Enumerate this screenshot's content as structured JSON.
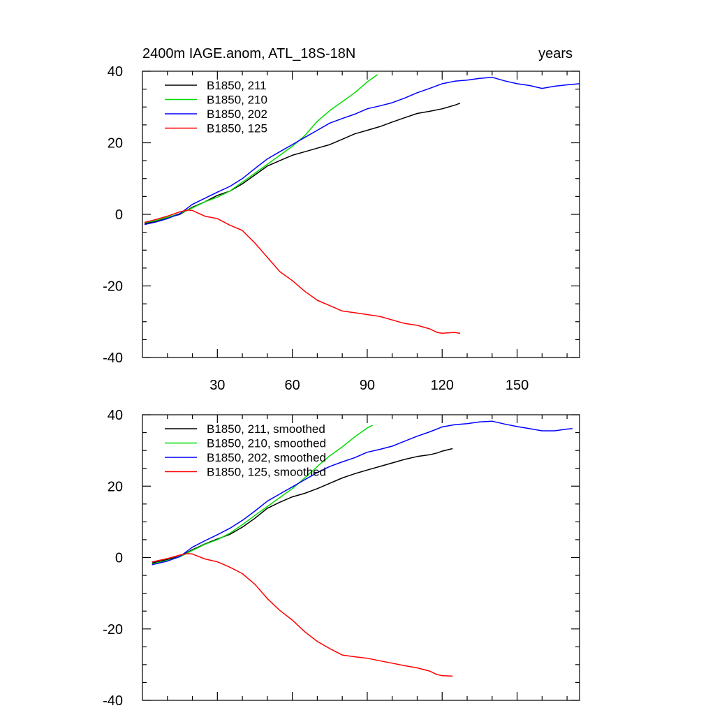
{
  "chart_data": [
    {
      "type": "line",
      "title_left": "2400m IAGE.anom, ATL_18S-18N",
      "title_right": "years",
      "xlim": [
        0,
        175
      ],
      "ylim": [
        -40,
        40
      ],
      "x_ticks": [
        30,
        60,
        90,
        120,
        150
      ],
      "x_tick_labels": [
        "30",
        "60",
        "90",
        "120",
        "150"
      ],
      "y_ticks": [
        -40,
        -20,
        0,
        20,
        40
      ],
      "y_tick_labels": [
        "-40",
        "-20",
        "0",
        "20",
        "40"
      ],
      "grid": false,
      "legend_position": "top-left",
      "series": [
        {
          "name": "B1850, 211",
          "color": "#000000",
          "x": [
            1,
            5,
            10,
            15,
            20,
            25,
            30,
            35,
            40,
            45,
            50,
            55,
            60,
            65,
            70,
            75,
            80,
            85,
            90,
            95,
            100,
            105,
            110,
            115,
            120,
            125,
            127
          ],
          "y": [
            -2.5,
            -2,
            -1,
            0,
            2,
            3.5,
            5.3,
            6.5,
            8.5,
            11,
            13.5,
            15,
            16.5,
            17.5,
            18.5,
            19.5,
            21,
            22.5,
            23.5,
            24.5,
            25.8,
            27,
            28.2,
            28.8,
            29.5,
            30.5,
            31
          ]
        },
        {
          "name": "B1850, 210",
          "color": "#00dd00",
          "x": [
            1,
            5,
            10,
            15,
            20,
            25,
            30,
            35,
            40,
            45,
            50,
            55,
            60,
            65,
            70,
            75,
            80,
            85,
            90,
            94
          ],
          "y": [
            -2.3,
            -1.8,
            -0.8,
            0.2,
            1.8,
            3.5,
            4.8,
            6.5,
            9,
            11.5,
            14,
            16.5,
            19,
            22,
            26,
            29,
            31.5,
            34,
            37,
            39
          ]
        },
        {
          "name": "B1850, 202",
          "color": "#0000ff",
          "x": [
            1,
            5,
            10,
            15,
            20,
            25,
            30,
            35,
            40,
            45,
            50,
            55,
            60,
            65,
            70,
            75,
            80,
            85,
            90,
            95,
            100,
            105,
            110,
            115,
            120,
            125,
            130,
            135,
            140,
            145,
            150,
            155,
            160,
            165,
            170,
            175
          ],
          "y": [
            -2.8,
            -2.2,
            -1.2,
            0.2,
            2.8,
            4.5,
            6.2,
            7.8,
            10,
            12.8,
            15.5,
            17.5,
            19.5,
            21.5,
            23.5,
            25.5,
            26.8,
            28,
            29.5,
            30.3,
            31.2,
            32.5,
            34,
            35.2,
            36.5,
            37.2,
            37.5,
            38,
            38.3,
            37.3,
            36.5,
            36,
            35.2,
            35.8,
            36.2,
            36.5
          ]
        },
        {
          "name": "B1850, 125",
          "color": "#ff0000",
          "x": [
            1,
            5,
            10,
            15,
            18,
            20,
            25,
            30,
            35,
            40,
            45,
            50,
            55,
            60,
            65,
            70,
            75,
            80,
            85,
            90,
            95,
            100,
            105,
            110,
            115,
            118,
            120,
            125,
            127
          ],
          "y": [
            -2.2,
            -1.5,
            -0.5,
            0.7,
            1.2,
            1.1,
            -0.5,
            -1.2,
            -3,
            -4.5,
            -8,
            -12,
            -16,
            -18.5,
            -21.5,
            -24,
            -25.5,
            -27,
            -27.5,
            -28,
            -28.5,
            -29.5,
            -30.5,
            -31,
            -32,
            -33,
            -33.2,
            -33,
            -33.2
          ]
        }
      ]
    },
    {
      "type": "line",
      "title_left": "",
      "title_right": "",
      "xlim": [
        0,
        175
      ],
      "ylim": [
        -40,
        40
      ],
      "x_ticks": [
        30,
        60,
        90,
        120,
        150
      ],
      "x_tick_labels": [],
      "y_ticks": [
        -40,
        -20,
        0,
        20,
        40
      ],
      "y_tick_labels": [
        "-40",
        "-20",
        "0",
        "20",
        "40"
      ],
      "grid": false,
      "legend_position": "top-left",
      "series": [
        {
          "name": "B1850, 211, smoothed",
          "color": "#000000",
          "x": [
            4,
            10,
            15,
            20,
            25,
            30,
            35,
            40,
            45,
            50,
            55,
            60,
            65,
            70,
            75,
            80,
            85,
            90,
            95,
            100,
            105,
            110,
            115,
            118,
            120,
            124
          ],
          "y": [
            -1.5,
            -0.5,
            0.3,
            2.2,
            3.8,
            5.2,
            6.5,
            8.5,
            11,
            13.8,
            15.5,
            17,
            18,
            19.3,
            20.8,
            22.3,
            23.5,
            24.5,
            25.5,
            26.5,
            27.5,
            28.3,
            28.8,
            29.3,
            29.8,
            30.5
          ]
        },
        {
          "name": "B1850, 210, smoothed",
          "color": "#00dd00",
          "x": [
            4,
            10,
            15,
            20,
            25,
            30,
            35,
            40,
            45,
            50,
            55,
            60,
            65,
            70,
            75,
            80,
            85,
            90,
            92
          ],
          "y": [
            -1.8,
            -0.8,
            0.2,
            2,
            3.7,
            5,
            6.8,
            9.2,
            11.8,
            14.3,
            16.8,
            19.3,
            22.3,
            25.5,
            28.5,
            31,
            33.8,
            36.3,
            37
          ]
        },
        {
          "name": "B1850, 202, smoothed",
          "color": "#0000ff",
          "x": [
            4,
            10,
            15,
            20,
            25,
            30,
            35,
            40,
            45,
            50,
            55,
            60,
            65,
            70,
            75,
            80,
            85,
            90,
            95,
            100,
            105,
            110,
            115,
            120,
            125,
            130,
            135,
            140,
            145,
            150,
            155,
            160,
            165,
            170,
            172
          ],
          "y": [
            -2,
            -1,
            0.3,
            2.9,
            4.7,
            6.4,
            8.2,
            10.4,
            13,
            15.8,
            17.8,
            19.8,
            21.8,
            23.8,
            25.5,
            26.8,
            28,
            29.5,
            30.3,
            31.2,
            32.6,
            34,
            35.2,
            36.6,
            37.2,
            37.5,
            38,
            38.2,
            37.4,
            36.7,
            36.1,
            35.5,
            35.5,
            36,
            36.1
          ]
        },
        {
          "name": "B1850, 125, smoothed",
          "color": "#ff0000",
          "x": [
            4,
            10,
            15,
            18,
            20,
            25,
            30,
            35,
            40,
            45,
            50,
            55,
            60,
            65,
            70,
            75,
            80,
            85,
            90,
            95,
            100,
            105,
            110,
            115,
            118,
            120,
            124
          ],
          "y": [
            -1.2,
            -0.3,
            0.7,
            1.1,
            1,
            -0.4,
            -1.2,
            -2.7,
            -4.5,
            -7.5,
            -11.5,
            -14.8,
            -17.5,
            -20.8,
            -23.5,
            -25.5,
            -27.3,
            -27.8,
            -28.2,
            -28.9,
            -29.6,
            -30.3,
            -30.9,
            -31.8,
            -32.8,
            -33.1,
            -33.2
          ]
        }
      ]
    }
  ]
}
